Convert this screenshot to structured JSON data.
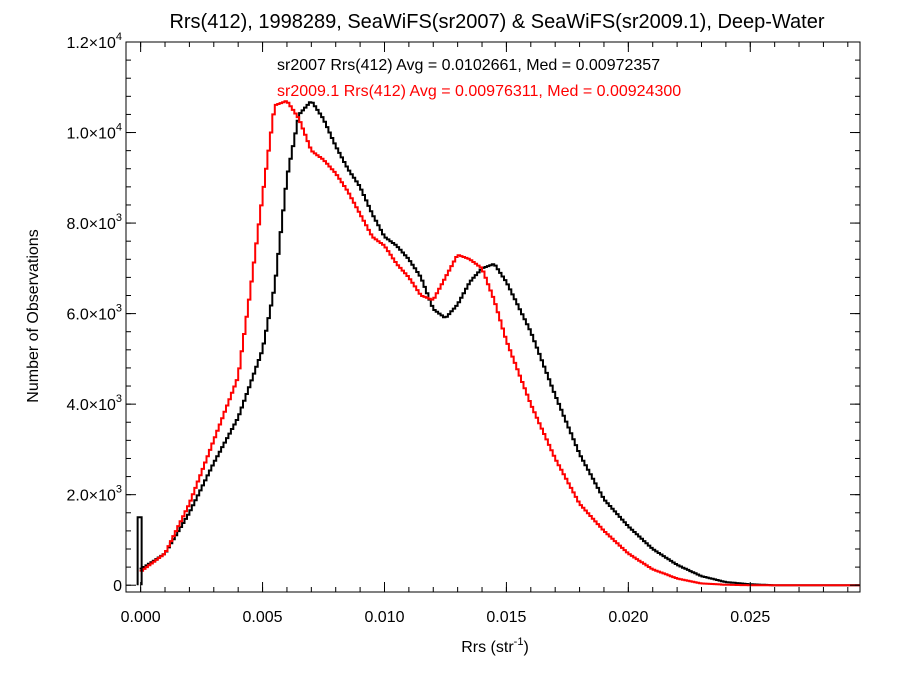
{
  "chart_data": {
    "type": "histogram",
    "title": "Rrs(412), 1998289, SeaWiFS(sr2007) & SeaWiFS(sr2009.1), Deep-Water",
    "xlabel": {
      "base": "Rrs (str",
      "sup": "-1",
      "close": ")"
    },
    "ylabel": "Number of Observations",
    "xlim": [
      -0.0006,
      0.0295
    ],
    "ylim": [
      -150,
      12000
    ],
    "x_ticks": [
      {
        "value": 0.0,
        "label": "0.000"
      },
      {
        "value": 0.005,
        "label": "0.005"
      },
      {
        "value": 0.01,
        "label": "0.010"
      },
      {
        "value": 0.015,
        "label": "0.015"
      },
      {
        "value": 0.02,
        "label": "0.020"
      },
      {
        "value": 0.025,
        "label": "0.025"
      }
    ],
    "y_ticks": [
      {
        "value": 0,
        "mant": "0",
        "exp": ""
      },
      {
        "value": 2000,
        "mant": "2.0",
        "exp": "3"
      },
      {
        "value": 4000,
        "mant": "4.0",
        "exp": "3"
      },
      {
        "value": 6000,
        "mant": "6.0",
        "exp": "3"
      },
      {
        "value": 8000,
        "mant": "8.0",
        "exp": "3"
      },
      {
        "value": 10000,
        "mant": "1.0",
        "exp": "4"
      },
      {
        "value": 12000,
        "mant": "1.2",
        "exp": "4"
      }
    ],
    "tick_times_sign": "×10",
    "grid": false,
    "legend": "none",
    "series": [
      {
        "annotation": "sr2007 Rrs(412) Avg = 0.0102661, Med = 0.00972357",
        "color": "#000000",
        "x": [
          0.0,
          0.001,
          0.002,
          0.003,
          0.004,
          0.005,
          0.0055,
          0.006,
          0.0065,
          0.007,
          0.0075,
          0.008,
          0.0085,
          0.009,
          0.0095,
          0.01,
          0.0105,
          0.011,
          0.0115,
          0.012,
          0.0125,
          0.013,
          0.0135,
          0.014,
          0.0145,
          0.015,
          0.016,
          0.017,
          0.018,
          0.019,
          0.02,
          0.021,
          0.022,
          0.023,
          0.024,
          0.025,
          0.026,
          0.027
        ],
        "y": [
          350,
          700,
          1600,
          2700,
          3700,
          5200,
          6600,
          9000,
          10400,
          10700,
          10300,
          9700,
          9200,
          8800,
          8200,
          7700,
          7500,
          7200,
          6800,
          6100,
          5900,
          6200,
          6700,
          7000,
          7100,
          6700,
          5600,
          4200,
          2900,
          1900,
          1300,
          800,
          450,
          200,
          70,
          20,
          0,
          0
        ]
      },
      {
        "annotation": "sr2009.1 Rrs(412) Avg = 0.00976311, Med = 0.00924300",
        "color": "#ff0000",
        "x": [
          0.0,
          0.001,
          0.002,
          0.003,
          0.004,
          0.0045,
          0.005,
          0.0055,
          0.006,
          0.0065,
          0.007,
          0.0075,
          0.008,
          0.0085,
          0.009,
          0.0095,
          0.01,
          0.0105,
          0.011,
          0.0115,
          0.012,
          0.0125,
          0.013,
          0.0135,
          0.014,
          0.0145,
          0.015,
          0.016,
          0.017,
          0.018,
          0.019,
          0.02,
          0.021,
          0.022,
          0.023,
          0.024,
          0.025,
          0.026,
          0.027
        ],
        "y": [
          300,
          700,
          1800,
          3200,
          4600,
          6500,
          8600,
          10600,
          10700,
          10300,
          9600,
          9400,
          9100,
          8700,
          8200,
          7700,
          7500,
          7100,
          6800,
          6400,
          6300,
          6800,
          7300,
          7200,
          7000,
          6300,
          5400,
          4000,
          2800,
          1800,
          1200,
          700,
          350,
          150,
          40,
          10,
          0,
          0,
          0
        ]
      }
    ],
    "spike": {
      "x": 0.0,
      "y": 1500
    }
  }
}
